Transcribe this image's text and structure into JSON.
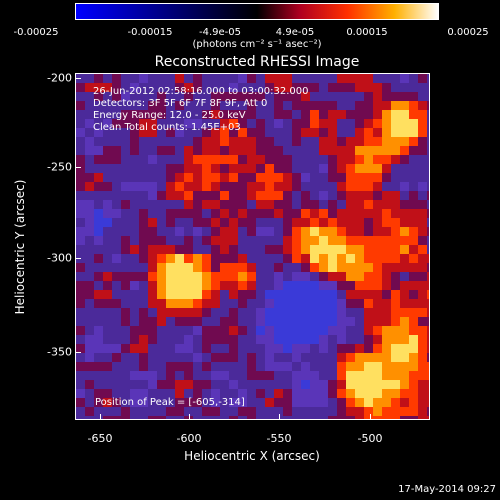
{
  "colorbar": {
    "ticks": [
      "-0.00025",
      "-0.00015",
      "-4.9e-05",
      "4.9e-05",
      "0.00015",
      "0.00025"
    ],
    "unit": "(photons cm⁻² s⁻¹ asec⁻²)"
  },
  "title": "Reconstructed RHESSI Image",
  "info": {
    "time": "26-Jun-2012 02:58:16.000 to 03:00:32.000",
    "detectors": "Detectors: 3F 5F 6F 7F 8F 9F, Att 0",
    "energy": "Energy Range: 12.0 - 25.0 keV",
    "clean": "Clean     Total counts: 1.45E+03"
  },
  "peak": "Position of Peak = [-605,-314]",
  "axes": {
    "xlabel": "Heliocentric X (arcsec)",
    "ylabel": "Heliocentric Y (arcsec)",
    "xticks": [
      "-650",
      "-600",
      "-550",
      "-500"
    ],
    "yticks": [
      "-200",
      "-250",
      "-300",
      "-350"
    ]
  },
  "timestamp": "17-May-2014 09:27"
}
